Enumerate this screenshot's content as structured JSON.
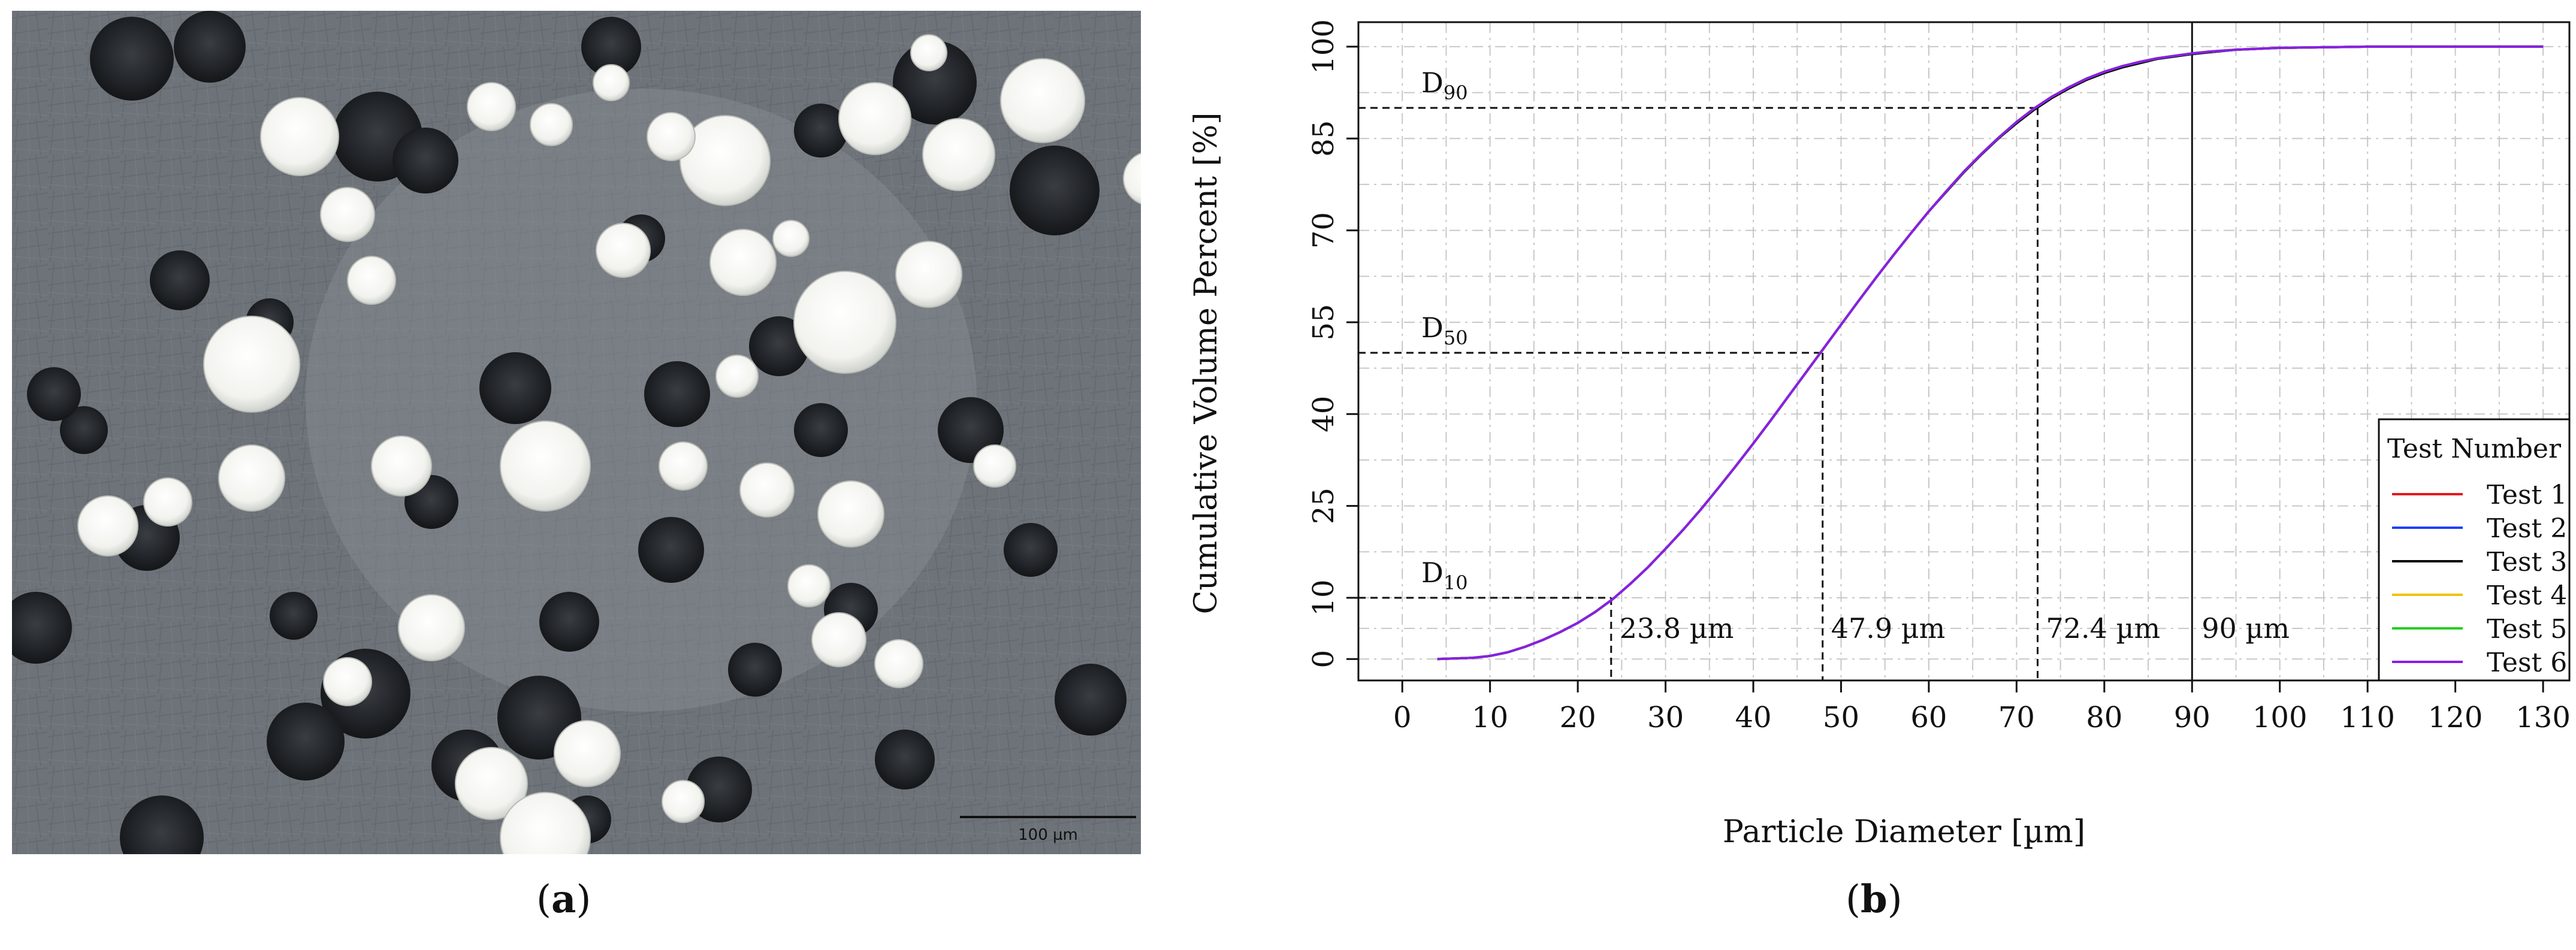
{
  "panels": {
    "a": {
      "caption": "a",
      "scale_bar_label": "100 µm"
    },
    "b": {
      "caption": "b"
    }
  },
  "chart_data": {
    "type": "line",
    "xlabel": "Particle Diameter [µm]",
    "ylabel": "Cumulative Volume Percent [%]",
    "xlim": [
      -5,
      133
    ],
    "ylim": [
      -3.5,
      104
    ],
    "x_ticks": [
      0,
      10,
      20,
      30,
      40,
      50,
      60,
      70,
      80,
      90,
      100,
      110,
      120,
      130
    ],
    "y_ticks": [
      0,
      10,
      25,
      40,
      55,
      70,
      85,
      100
    ],
    "y_minor_gridlines": [
      5,
      17.5,
      32.5,
      47.5,
      62.5,
      77.5,
      92.5
    ],
    "x_minor_gridlines": [
      5,
      15,
      25,
      35,
      45,
      55,
      65,
      75,
      85,
      95,
      105,
      115,
      125
    ],
    "grid": true,
    "legend": {
      "title": "Test Number",
      "placement": "bottom-right",
      "entries": [
        {
          "name": "Test 1",
          "color": "#e41a1c"
        },
        {
          "name": "Test 2",
          "color": "#1f3fff"
        },
        {
          "name": "Test 3",
          "color": "#000000"
        },
        {
          "name": "Test 4",
          "color": "#f2c200"
        },
        {
          "name": "Test 5",
          "color": "#22d01e"
        },
        {
          "name": "Test 6",
          "color": "#8a1ee6"
        }
      ]
    },
    "x": [
      4,
      6,
      8,
      10,
      12,
      14,
      16,
      18,
      20,
      22,
      24,
      26,
      28,
      30,
      32,
      34,
      36,
      38,
      40,
      42,
      44,
      46,
      48,
      50,
      52,
      54,
      56,
      58,
      60,
      62,
      64,
      66,
      68,
      70,
      72,
      74,
      76,
      78,
      80,
      82,
      84,
      86,
      88,
      90,
      92,
      95,
      100,
      105,
      110,
      120,
      130
    ],
    "series": [
      {
        "name": "Test 1",
        "values": [
          0,
          0.1,
          0.2,
          0.5,
          1.1,
          2.0,
          3.1,
          4.4,
          5.9,
          7.7,
          9.8,
          12.3,
          15.0,
          18.0,
          21.1,
          24.4,
          27.9,
          31.5,
          35.2,
          39.0,
          42.9,
          46.8,
          50.7,
          54.6,
          58.5,
          62.3,
          66.0,
          69.6,
          73.1,
          76.4,
          79.6,
          82.5,
          85.2,
          87.7,
          89.9,
          91.8,
          93.4,
          94.8,
          95.9,
          96.8,
          97.5,
          98.1,
          98.5,
          98.9,
          99.2,
          99.5,
          99.8,
          99.9,
          100,
          100,
          100
        ]
      },
      {
        "name": "Test 2",
        "values": [
          0,
          0.1,
          0.2,
          0.5,
          1.1,
          2.0,
          3.1,
          4.4,
          5.9,
          7.7,
          9.8,
          12.3,
          15.0,
          18.0,
          21.1,
          24.4,
          27.9,
          31.5,
          35.2,
          39.0,
          42.9,
          46.8,
          50.7,
          54.6,
          58.5,
          62.3,
          66.0,
          69.6,
          73.1,
          76.4,
          79.6,
          82.4,
          85.1,
          87.6,
          89.8,
          91.7,
          93.3,
          94.7,
          95.8,
          96.7,
          97.4,
          98.0,
          98.4,
          98.8,
          99.1,
          99.5,
          99.8,
          99.9,
          100,
          100,
          100
        ]
      },
      {
        "name": "Test 3",
        "values": [
          0,
          0.1,
          0.2,
          0.5,
          1.1,
          2.0,
          3.1,
          4.4,
          5.9,
          7.7,
          9.8,
          12.3,
          15.0,
          18.0,
          21.1,
          24.4,
          27.9,
          31.5,
          35.2,
          39.0,
          42.9,
          46.8,
          50.7,
          54.6,
          58.5,
          62.3,
          66.0,
          69.6,
          73.1,
          76.3,
          79.5,
          82.4,
          85.1,
          87.5,
          89.7,
          91.6,
          93.2,
          94.6,
          95.7,
          96.6,
          97.3,
          98.0,
          98.4,
          98.8,
          99.1,
          99.5,
          99.8,
          99.9,
          100,
          100,
          100
        ]
      },
      {
        "name": "Test 4",
        "values": [
          0,
          0.1,
          0.2,
          0.5,
          1.1,
          2.0,
          3.1,
          4.4,
          5.9,
          7.7,
          9.8,
          12.3,
          15.0,
          18.0,
          21.1,
          24.4,
          27.9,
          31.5,
          35.2,
          39.0,
          42.9,
          46.8,
          50.7,
          54.6,
          58.5,
          62.3,
          66.0,
          69.6,
          73.1,
          76.4,
          79.6,
          82.5,
          85.2,
          87.7,
          89.9,
          91.8,
          93.4,
          94.8,
          95.9,
          96.8,
          97.5,
          98.1,
          98.5,
          98.9,
          99.2,
          99.5,
          99.8,
          99.9,
          100,
          100,
          100
        ]
      },
      {
        "name": "Test 5",
        "values": [
          0,
          0.1,
          0.2,
          0.5,
          1.1,
          2.0,
          3.1,
          4.4,
          5.9,
          7.7,
          9.8,
          12.3,
          15.0,
          18.0,
          21.1,
          24.4,
          27.9,
          31.5,
          35.2,
          39.0,
          42.9,
          46.8,
          50.7,
          54.6,
          58.5,
          62.3,
          66.0,
          69.6,
          73.1,
          76.4,
          79.6,
          82.5,
          85.2,
          87.7,
          89.9,
          91.8,
          93.4,
          94.8,
          95.9,
          96.8,
          97.5,
          98.1,
          98.5,
          98.9,
          99.2,
          99.5,
          99.8,
          99.9,
          100,
          100,
          100
        ]
      },
      {
        "name": "Test 6",
        "values": [
          0,
          0.1,
          0.2,
          0.5,
          1.1,
          2.0,
          3.1,
          4.4,
          5.9,
          7.7,
          9.8,
          12.3,
          15.0,
          18.0,
          21.1,
          24.4,
          27.9,
          31.5,
          35.2,
          39.0,
          42.9,
          46.8,
          50.7,
          54.6,
          58.5,
          62.3,
          66.0,
          69.6,
          73.1,
          76.4,
          79.6,
          82.5,
          85.2,
          87.7,
          89.9,
          91.8,
          93.4,
          94.8,
          95.9,
          96.8,
          97.5,
          98.1,
          98.5,
          98.9,
          99.2,
          99.5,
          99.8,
          99.9,
          100,
          100,
          100
        ]
      }
    ],
    "reference_lines": [
      {
        "label_main": "D",
        "label_sub": "10",
        "x": 23.8,
        "y": 10,
        "value_label": "23.8 µm"
      },
      {
        "label_main": "D",
        "label_sub": "50",
        "x": 47.9,
        "y": 50,
        "value_label": "47.9 µm"
      },
      {
        "label_main": "D",
        "label_sub": "90",
        "x": 72.4,
        "y": 90,
        "value_label": "72.4 µm"
      }
    ],
    "vertical_line": {
      "x": 90,
      "value_label": "90 µm"
    }
  }
}
